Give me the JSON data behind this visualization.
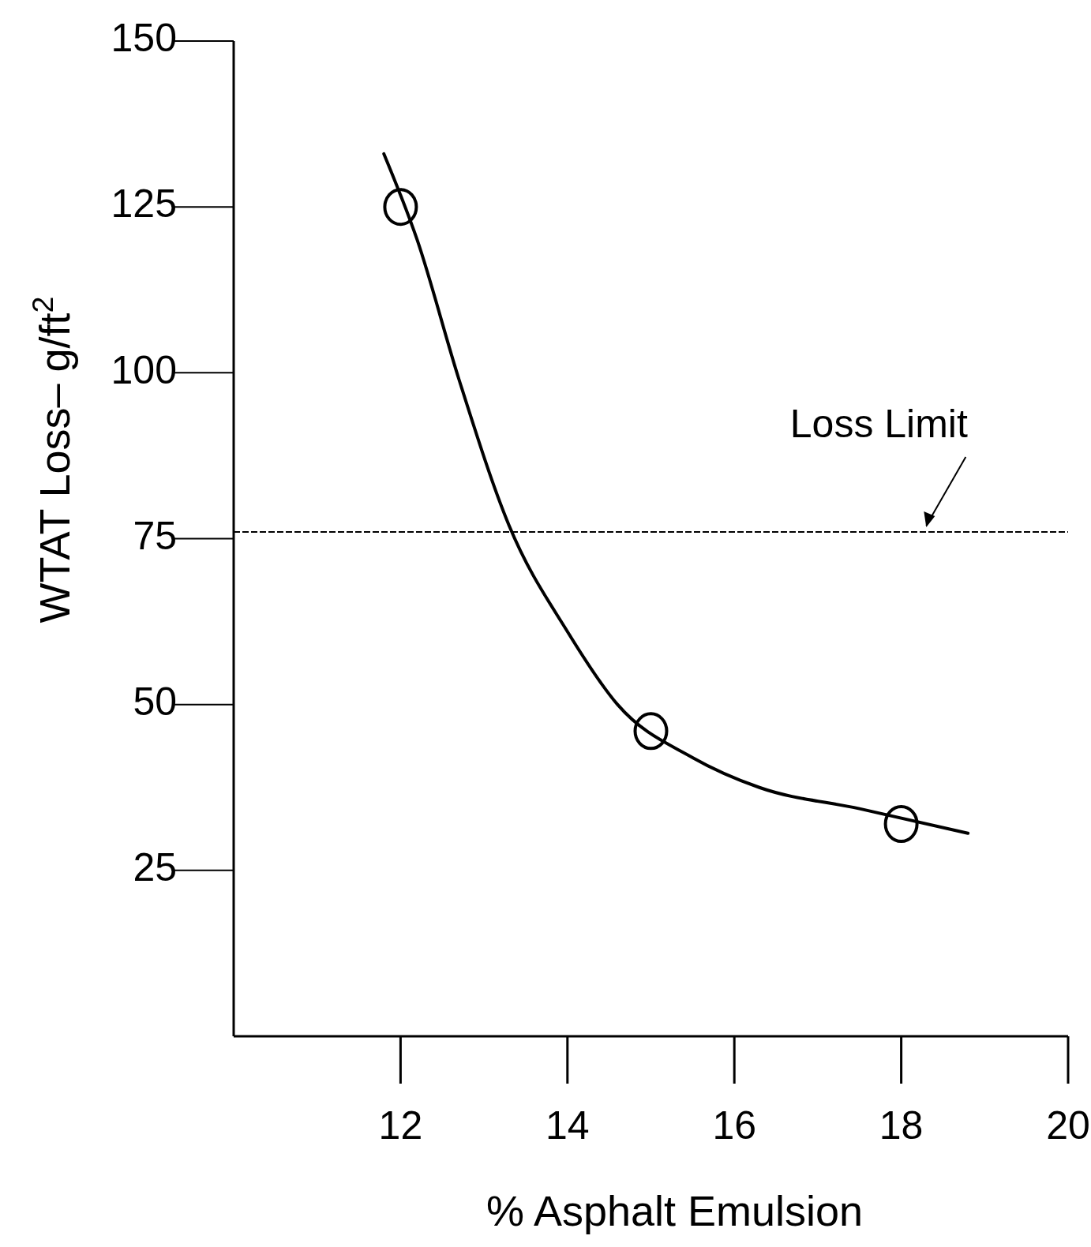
{
  "chart_data": {
    "type": "scatter",
    "xlabel": "% Asphalt Emulsion",
    "ylabel": "WTAT Loss– g/ft$^{2}$",
    "xlim": [
      10,
      20
    ],
    "xticks": [
      12,
      14,
      16,
      18,
      20
    ],
    "ylim": [
      0,
      150
    ],
    "yticks": [
      25,
      50,
      75,
      100,
      125,
      150
    ],
    "grid": false,
    "marker": "circle",
    "series": [
      {
        "color": "#000000",
        "x": [
          12,
          15,
          18
        ],
        "values": [
          125,
          46,
          32
        ]
      },
      {
        "type": "line",
        "color": "#000000",
        "line_style": "solid",
        "marker": "none",
        "x": [
          11.8,
          12.2,
          12.7,
          13.3,
          14,
          14.6,
          15.5,
          16.3,
          17.5,
          18.8
        ],
        "values": [
          133,
          120,
          99,
          77,
          61,
          50,
          42,
          37.5,
          34.3,
          30.6
        ]
      }
    ],
    "ref_lines": [
      {
        "axis": "y",
        "value": 76,
        "label": "Loss Limit",
        "color": "#000000",
        "line_style": "dashed"
      }
    ]
  }
}
